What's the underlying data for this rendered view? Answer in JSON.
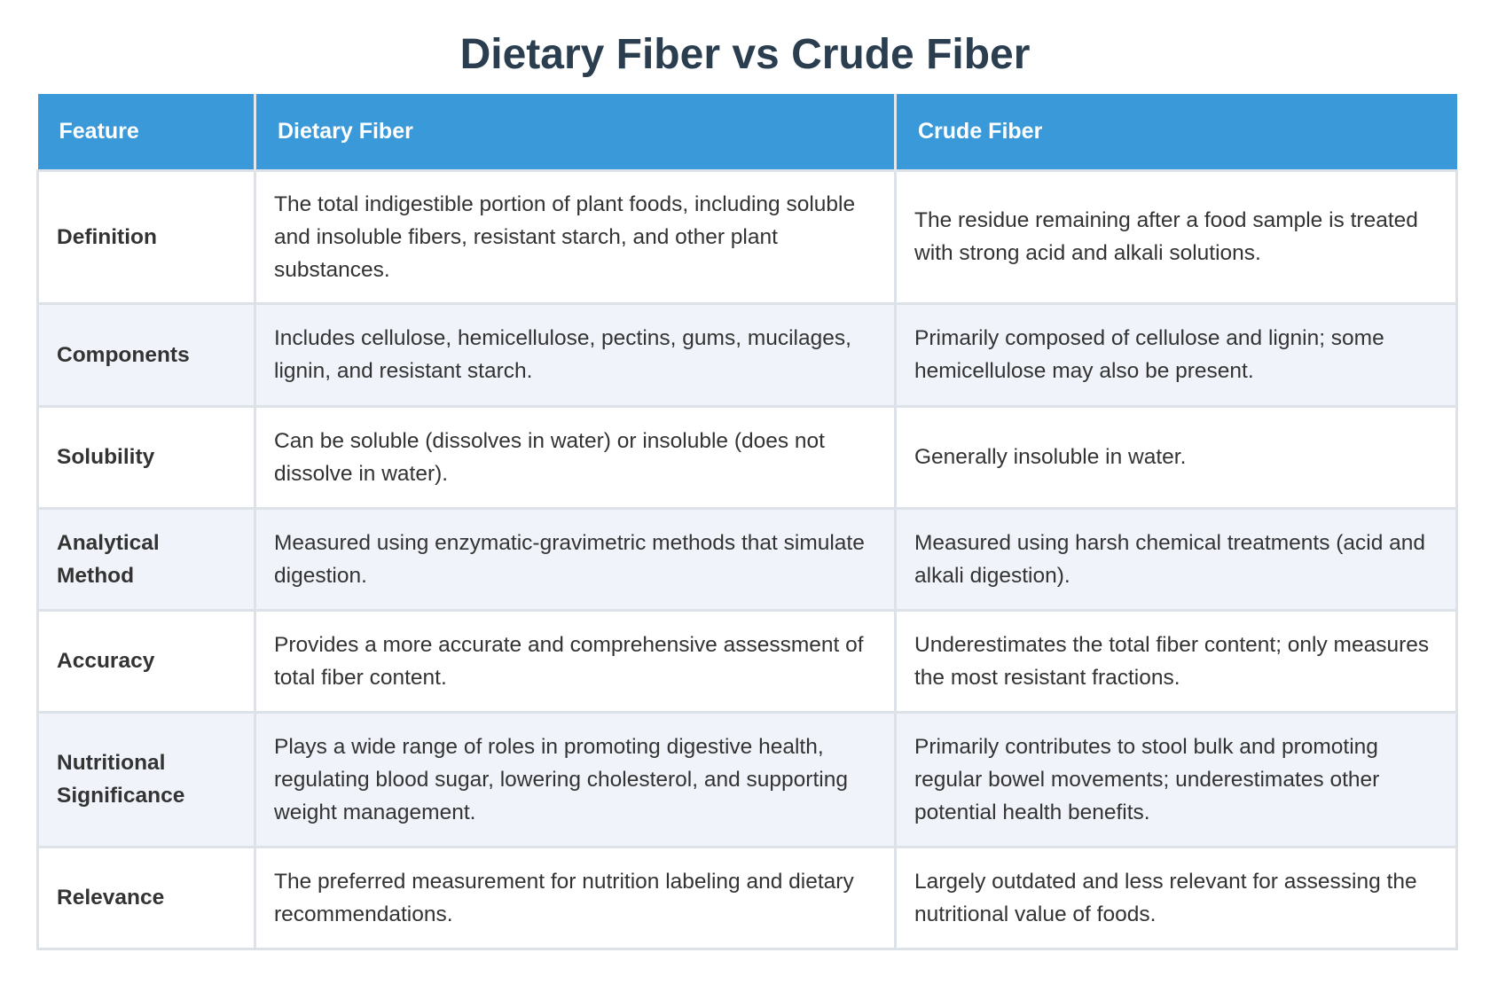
{
  "title": "Dietary Fiber vs Crude Fiber",
  "colors": {
    "header_bg": "#3a9ad9",
    "title_text": "#2b3e50",
    "row_alt_bg": "#f0f4fa",
    "border": "#dde2e8"
  },
  "table": {
    "headers": [
      "Feature",
      "Dietary Fiber",
      "Crude Fiber"
    ],
    "rows": [
      {
        "feature": "Definition",
        "dietary": "The total indigestible portion of plant foods, including soluble and insoluble fibers, resistant starch, and other plant substances.",
        "crude": "The residue remaining after a food sample is treated with strong acid and alkali solutions."
      },
      {
        "feature": "Components",
        "dietary": "Includes cellulose, hemicellulose, pectins, gums, mucilages, lignin, and resistant starch.",
        "crude": "Primarily composed of cellulose and lignin; some hemicellulose may also be present."
      },
      {
        "feature": "Solubility",
        "dietary": "Can be soluble (dissolves in water) or insoluble (does not dissolve in water).",
        "crude": "Generally insoluble in water."
      },
      {
        "feature": "Analytical Method",
        "dietary": "Measured using enzymatic-gravimetric methods that simulate digestion.",
        "crude": "Measured using harsh chemical treatments (acid and alkali digestion)."
      },
      {
        "feature": "Accuracy",
        "dietary": "Provides a more accurate and comprehensive assessment of total fiber content.",
        "crude": "Underestimates the total fiber content; only measures the most resistant fractions."
      },
      {
        "feature": "Nutritional Significance",
        "dietary": "Plays a wide range of roles in promoting digestive health, regulating blood sugar, lowering cholesterol, and supporting weight management.",
        "crude": "Primarily contributes to stool bulk and promoting regular bowel movements; underestimates other potential health benefits."
      },
      {
        "feature": "Relevance",
        "dietary": "The preferred measurement for nutrition labeling and dietary recommendations.",
        "crude": "Largely outdated and less relevant for assessing the nutritional value of foods."
      }
    ]
  }
}
